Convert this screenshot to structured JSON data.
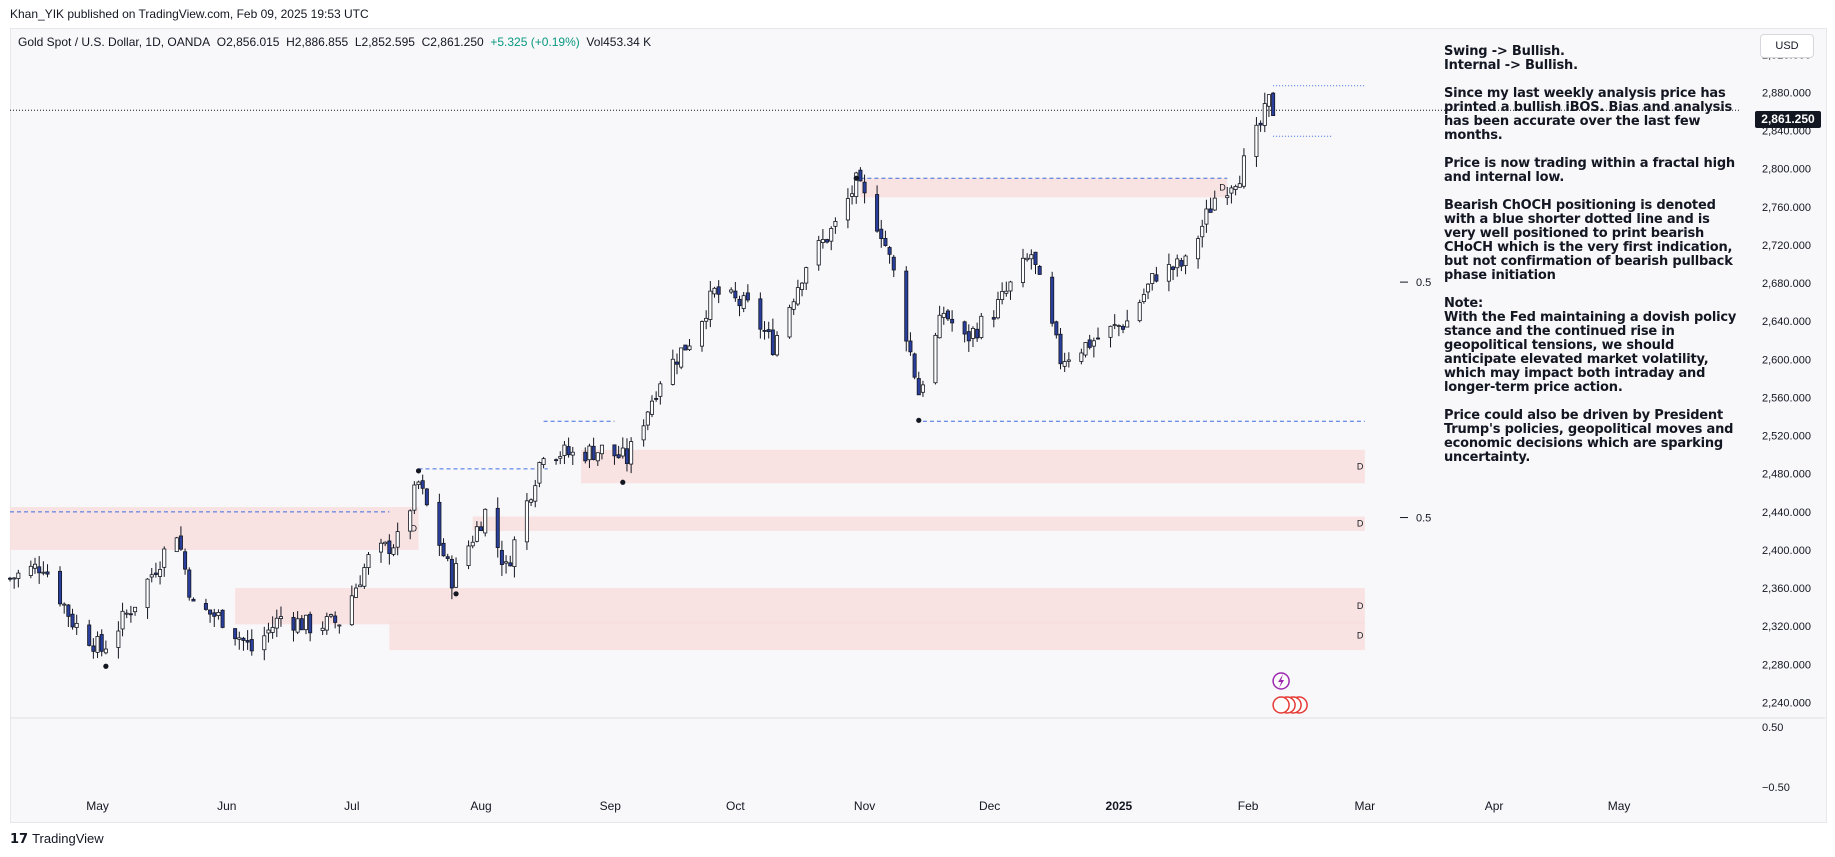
{
  "header": {
    "published": "Khan_YIK published on TradingView.com, Feb 09, 2025 19:53 UTC"
  },
  "legend": {
    "symbol": "Gold Spot / U.S. Dollar, 1D, OANDA",
    "open": "O2,856.015",
    "high": "H2,886.855",
    "low": "L2,852.595",
    "close": "C2,861.250",
    "change": "+5.325 (+0.19%)",
    "volume": "Vol453.34 K"
  },
  "currency_button": "USD",
  "current_price": "2,861.250",
  "notes": [
    "Swing -> Bullish.\nInternal -> Bullish.",
    "Since my last weekly analysis price has printed a bullish iBOS. Bias and analysis has been accurate over the last few months.",
    "Price is now trading within a fractal high and internal low.",
    "Bearish ChOCH positioning is denoted with a blue shorter dotted line and is very well positioned to print bearish CHoCH which is the very first indication, but not confirmation of bearish pullback phase initiation",
    "Note:\nWith the Fed maintaining a dovish policy stance and the continued rise in geopolitical tensions, we should anticipate elevated market volatility, which may impact both intraday and longer-term price action.",
    "Price could also be driven by President Trump's policies, geopolitical moves and economic decisions which are sparking uncertainty."
  ],
  "footer": {
    "brand": "TradingView",
    "logo": "17"
  },
  "colors": {
    "bull": "#ffffff",
    "bear": "#2a3f9d",
    "zone": "#f8dede",
    "level": "#3d6fe0",
    "text": "#131722"
  },
  "chart_data": {
    "type": "candlestick",
    "y_tick_labels": [
      "2,920.000",
      "2,880.000",
      "2,840.000",
      "2,800.000",
      "2,760.000",
      "2,720.000",
      "2,680.000",
      "2,640.000",
      "2,600.000",
      "2,560.000",
      "2,520.000",
      "2,480.000",
      "2,440.000",
      "2,400.000",
      "2,360.000",
      "2,320.000",
      "2,280.000",
      "2,240.000"
    ],
    "y_ticks": [
      2920,
      2880,
      2840,
      2800,
      2760,
      2720,
      2680,
      2640,
      2600,
      2560,
      2520,
      2480,
      2440,
      2400,
      2360,
      2320,
      2280,
      2240
    ],
    "ylim": [
      2230,
      2935
    ],
    "oscillator_ticks": [
      {
        "label": "0.50",
        "value": 0.5
      },
      {
        "label": "−0.50",
        "value": -0.5
      }
    ],
    "x_labels": [
      {
        "label": "May",
        "date": "2024-05-01"
      },
      {
        "label": "Jun",
        "date": "2024-06-01"
      },
      {
        "label": "Jul",
        "date": "2024-07-01"
      },
      {
        "label": "Aug",
        "date": "2024-08-01"
      },
      {
        "label": "Sep",
        "date": "2024-09-01"
      },
      {
        "label": "Oct",
        "date": "2024-10-01"
      },
      {
        "label": "Nov",
        "date": "2024-11-01"
      },
      {
        "label": "Dec",
        "date": "2024-12-01"
      },
      {
        "label": "2025",
        "date": "2025-01-01"
      },
      {
        "label": "Feb",
        "date": "2025-02-01"
      },
      {
        "label": "Mar",
        "date": "2025-03-01"
      },
      {
        "label": "Apr",
        "date": "2025-04-01"
      },
      {
        "label": "May",
        "date": "2025-05-01"
      }
    ],
    "x_range": [
      "2024-04-10",
      "2025-05-30"
    ],
    "last_price": 2861.25,
    "close_path": [
      [
        "2024-04-10",
        2370
      ],
      [
        "2024-04-18",
        2385
      ],
      [
        "2024-04-25",
        2325
      ],
      [
        "2024-05-02",
        2295
      ],
      [
        "2024-05-10",
        2345
      ],
      [
        "2024-05-20",
        2420
      ],
      [
        "2024-05-24",
        2340
      ],
      [
        "2024-05-31",
        2328
      ],
      [
        "2024-06-07",
        2295
      ],
      [
        "2024-06-14",
        2330
      ],
      [
        "2024-06-21",
        2320
      ],
      [
        "2024-06-28",
        2325
      ],
      [
        "2024-07-05",
        2390
      ],
      [
        "2024-07-12",
        2410
      ],
      [
        "2024-07-17",
        2470
      ],
      [
        "2024-07-25",
        2370
      ],
      [
        "2024-08-02",
        2440
      ],
      [
        "2024-08-07",
        2380
      ],
      [
        "2024-08-16",
        2505
      ],
      [
        "2024-08-23",
        2500
      ],
      [
        "2024-08-30",
        2505
      ],
      [
        "2024-09-05",
        2495
      ],
      [
        "2024-09-13",
        2580
      ],
      [
        "2024-09-20",
        2620
      ],
      [
        "2024-09-26",
        2670
      ],
      [
        "2024-10-04",
        2655
      ],
      [
        "2024-10-10",
        2615
      ],
      [
        "2024-10-18",
        2700
      ],
      [
        "2024-10-25",
        2740
      ],
      [
        "2024-10-30",
        2785
      ],
      [
        "2024-11-05",
        2735
      ],
      [
        "2024-11-08",
        2690
      ],
      [
        "2024-11-14",
        2565
      ],
      [
        "2024-11-20",
        2650
      ],
      [
        "2024-11-25",
        2620
      ],
      [
        "2024-12-02",
        2650
      ],
      [
        "2024-12-11",
        2710
      ],
      [
        "2024-12-18",
        2600
      ],
      [
        "2024-12-26",
        2620
      ],
      [
        "2025-01-03",
        2640
      ],
      [
        "2025-01-10",
        2690
      ],
      [
        "2025-01-17",
        2700
      ],
      [
        "2025-01-24",
        2770
      ],
      [
        "2025-01-30",
        2795
      ],
      [
        "2025-02-04",
        2845
      ],
      [
        "2025-02-06",
        2870
      ],
      [
        "2025-02-07",
        2861.25
      ]
    ],
    "demand_zones": [
      {
        "label": "D",
        "from": "2024-04-10",
        "to": "2024-07-17",
        "low": 2400,
        "high": 2445
      },
      {
        "label": "D",
        "from": "2024-06-03",
        "to": "2025-03-01",
        "low": 2322,
        "high": 2360
      },
      {
        "label": "D",
        "from": "2024-07-30",
        "to": "2025-03-01",
        "low": 2420,
        "high": 2435
      },
      {
        "label": "D",
        "from": "2024-08-25",
        "to": "2025-03-01",
        "low": 2470,
        "high": 2505
      },
      {
        "label": "D",
        "from": "2024-07-10",
        "to": "2025-03-01",
        "low": 2295,
        "high": 2325
      },
      {
        "label": "D",
        "from": "2024-10-31",
        "to": "2025-01-27",
        "low": 2770,
        "high": 2790
      }
    ],
    "levels": [
      {
        "price": 2790,
        "from": "2024-10-31",
        "to": "2025-01-27",
        "style": "dashed"
      },
      {
        "price": 2535,
        "from": "2024-11-15",
        "to": "2025-03-01",
        "style": "dashed"
      },
      {
        "price": 2485,
        "from": "2024-07-17",
        "to": "2024-08-17",
        "style": "dashed"
      },
      {
        "price": 2535,
        "from": "2024-08-16",
        "to": "2024-09-02",
        "style": "dashed"
      },
      {
        "price": 2440,
        "from": "2024-04-10",
        "to": "2024-07-10",
        "style": "dashed"
      },
      {
        "price": 2887,
        "from": "2025-02-07",
        "to": "2025-03-01",
        "style": "dotted"
      },
      {
        "price": 2834,
        "from": "2025-02-07",
        "to": "2025-02-21",
        "style": "dotted"
      }
    ],
    "fib_labels": [
      {
        "label": "0.5",
        "price": 2681
      },
      {
        "label": "0.5",
        "price": 2434
      }
    ],
    "swing_points": [
      {
        "date": "2024-05-03",
        "price": 2278
      },
      {
        "date": "2024-07-17",
        "price": 2483
      },
      {
        "date": "2024-07-26",
        "price": 2354
      },
      {
        "date": "2024-09-04",
        "price": 2471
      },
      {
        "date": "2024-10-30",
        "price": 2790
      },
      {
        "date": "2024-11-14",
        "price": 2536
      }
    ]
  }
}
